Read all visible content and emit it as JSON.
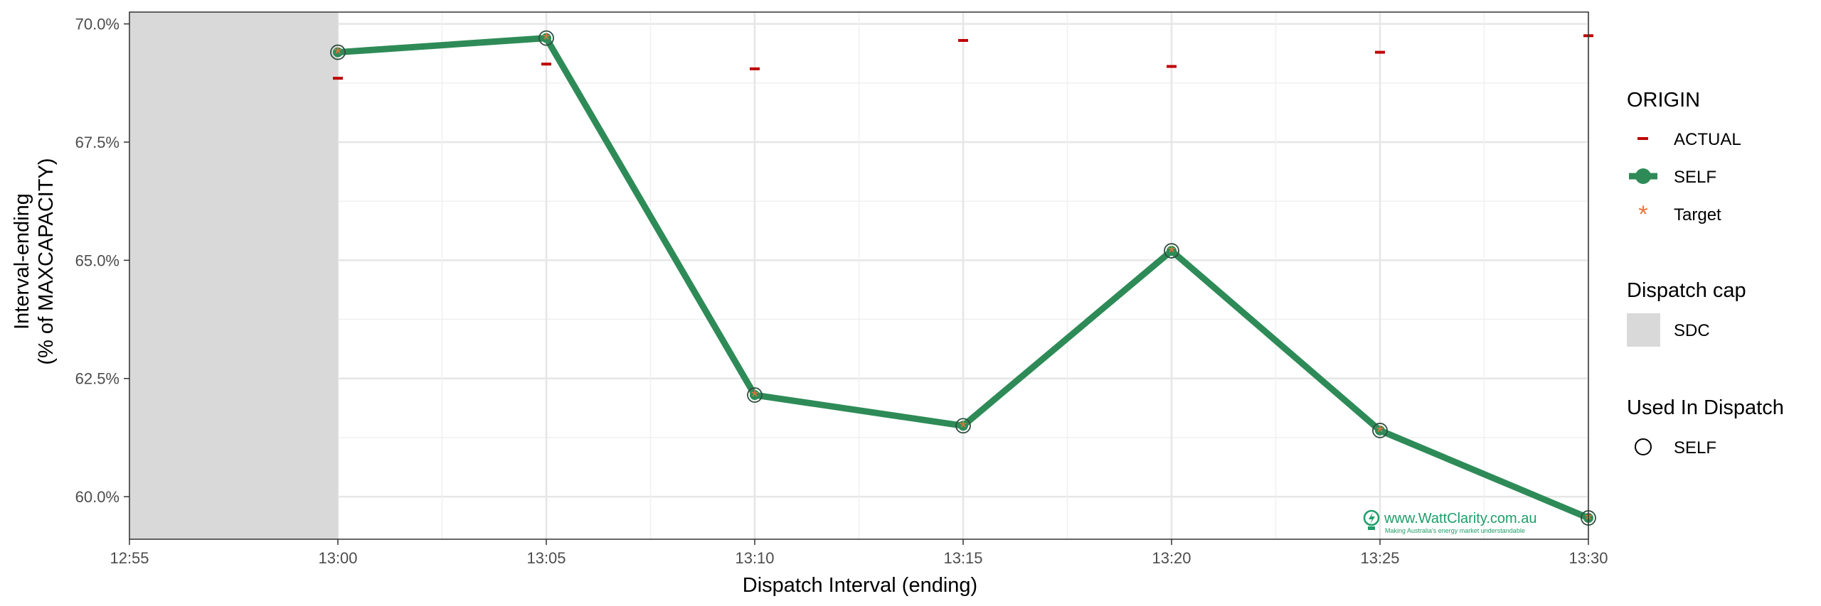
{
  "chart_data": {
    "type": "line",
    "title": "",
    "xlabel": "Dispatch Interval (ending)",
    "ylabel_line1": "Interval-ending",
    "ylabel_line2": "(% of MAXCAPACITY)",
    "categories": [
      "12:55",
      "13:00",
      "13:05",
      "13:10",
      "13:15",
      "13:20",
      "13:25",
      "13:30"
    ],
    "y_ticks": [
      "60.0%",
      "62.5%",
      "65.0%",
      "67.5%",
      "70.0%"
    ],
    "y_tick_values": [
      60.0,
      62.5,
      65.0,
      67.5,
      70.0
    ],
    "ylim": [
      59.1,
      70.25
    ],
    "grid": true,
    "shaded_region": {
      "from": "12:55",
      "to": "13:00",
      "name": "SDC",
      "color": "#d9d9d9"
    },
    "series": [
      {
        "name": "ACTUAL",
        "marker": "dash",
        "color": "#c00000",
        "x": [
          "13:00",
          "13:05",
          "13:10",
          "13:15",
          "13:20",
          "13:25",
          "13:30"
        ],
        "values": [
          68.85,
          69.15,
          69.05,
          69.65,
          69.1,
          69.4,
          69.75
        ]
      },
      {
        "name": "SELF",
        "marker": "line",
        "color": "#2e8b57",
        "x": [
          "13:00",
          "13:05",
          "13:10",
          "13:15",
          "13:20",
          "13:25",
          "13:30"
        ],
        "values": [
          69.4,
          69.7,
          62.15,
          61.5,
          65.2,
          61.4,
          59.55
        ]
      },
      {
        "name": "Target",
        "marker": "asterisk",
        "color": "#e8743b",
        "x": [
          "13:00",
          "13:05",
          "13:10",
          "13:15",
          "13:20",
          "13:25",
          "13:30"
        ],
        "values": [
          69.4,
          69.7,
          62.15,
          61.5,
          65.2,
          61.4,
          59.55
        ]
      }
    ],
    "used_in_dispatch": {
      "name": "SELF",
      "x": [
        "13:00",
        "13:05",
        "13:10",
        "13:15",
        "13:20",
        "13:25",
        "13:30"
      ],
      "values": [
        69.4,
        69.7,
        62.15,
        61.5,
        65.2,
        61.4,
        59.55
      ]
    },
    "legend": {
      "placement": "right",
      "groups": [
        {
          "title": "ORIGIN",
          "items": [
            "ACTUAL",
            "SELF",
            "Target"
          ]
        },
        {
          "title": "Dispatch cap",
          "items": [
            "SDC"
          ]
        },
        {
          "title": "Used In Dispatch",
          "items": [
            "SELF"
          ]
        }
      ]
    }
  },
  "watermark": {
    "text": "www.WattClarity.com.au",
    "tagline": "Making Australia's energy market understandable",
    "color": "#1e9e6a"
  }
}
